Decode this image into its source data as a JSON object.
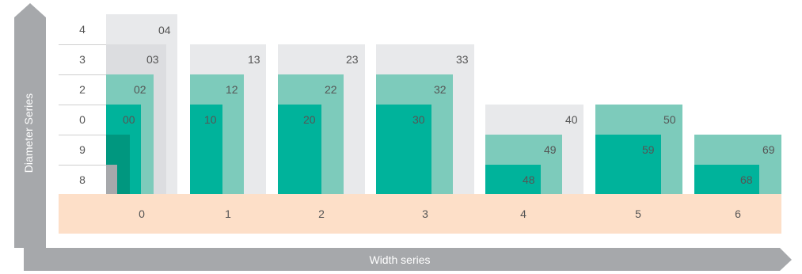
{
  "axes": {
    "y_title": "Diameter Series",
    "x_title": "Width series"
  },
  "diameter_series": [
    "4",
    "3",
    "2",
    "0",
    "9",
    "8"
  ],
  "width_series": [
    "0",
    "1",
    "2",
    "3",
    "4",
    "5",
    "6"
  ],
  "groups": [
    {
      "width": "0",
      "codes": [
        "04",
        "03",
        "02",
        "00"
      ]
    },
    {
      "width": "1",
      "codes": [
        "13",
        "12",
        "10"
      ]
    },
    {
      "width": "2",
      "codes": [
        "23",
        "22",
        "20"
      ]
    },
    {
      "width": "3",
      "codes": [
        "33",
        "32",
        "30"
      ]
    },
    {
      "width": "4",
      "codes": [
        "40",
        "49",
        "48"
      ]
    },
    {
      "width": "5",
      "codes": [
        "50",
        "59"
      ]
    },
    {
      "width": "6",
      "codes": [
        "69",
        "68"
      ]
    }
  ],
  "colors": {
    "axis_gray": "#a6a8ab",
    "light_gray": "#e8e9eb",
    "light_teal": "#7dcbbb",
    "teal": "#00b39b",
    "dark_teal": "#00977f",
    "peach": "#fddfc8"
  }
}
